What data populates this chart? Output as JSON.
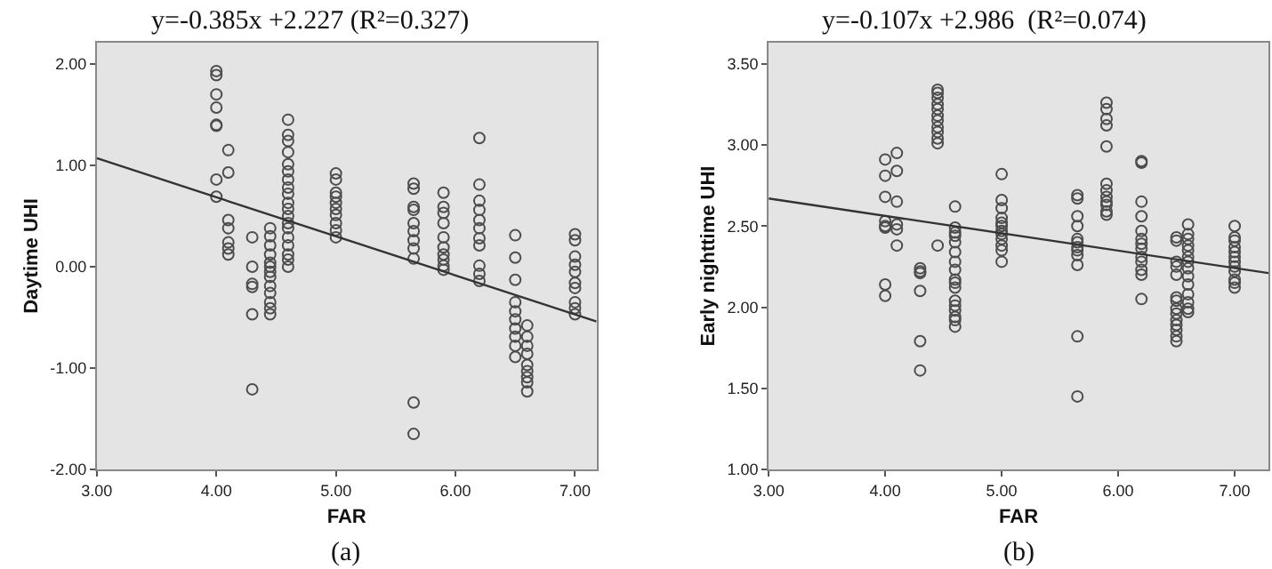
{
  "chart_data": [
    {
      "type": "scatter",
      "title": "y=-0.385x +2.227 (R²=0.327)",
      "xlabel": "FAR",
      "ylabel": "Daytime UHI",
      "annotations": [
        "(a)"
      ],
      "grid": false,
      "xlim": [
        3,
        7.18
      ],
      "ylim": [
        -2,
        2.21
      ],
      "xticks": [
        {
          "value": 3,
          "label": "3.00"
        },
        {
          "value": 4,
          "label": "4.00"
        },
        {
          "value": 5,
          "label": "5.00"
        },
        {
          "value": 6,
          "label": "6.00"
        },
        {
          "value": 7,
          "label": "7.00"
        }
      ],
      "yticks": [
        {
          "value": -2,
          "label": "-2.00"
        },
        {
          "value": -1,
          "label": "-1.00"
        },
        {
          "value": 0,
          "label": "0.00"
        },
        {
          "value": 1,
          "label": "1.00"
        },
        {
          "value": 2,
          "label": "2.00"
        }
      ],
      "series": [
        {
          "marker": "circle",
          "color": "#4d4d4d",
          "x": [
            4,
            4,
            4,
            4,
            4,
            4,
            4,
            4,
            4.1,
            4.1,
            4.1,
            4.1,
            4.1,
            4.1,
            4.1,
            4.3,
            4.3,
            4.3,
            4.3,
            4.3,
            4.3,
            4.45,
            4.45,
            4.45,
            4.45,
            4.45,
            4.45,
            4.45,
            4.45,
            4.45,
            4.45,
            4.45,
            4.45,
            4.45,
            4.6,
            4.6,
            4.6,
            4.6,
            4.6,
            4.6,
            4.6,
            4.6,
            4.6,
            4.6,
            4.6,
            4.6,
            4.6,
            4.6,
            4.6,
            4.6,
            4.6,
            4.6,
            4.6,
            5,
            5,
            5,
            5,
            5,
            5,
            5,
            5,
            5,
            5,
            5.65,
            5.65,
            5.65,
            5.65,
            5.65,
            5.65,
            5.65,
            5.65,
            5.65,
            5.65,
            5.65,
            5.9,
            5.9,
            5.9,
            5.9,
            5.9,
            5.9,
            5.9,
            5.9,
            5.9,
            5.9,
            6.2,
            6.2,
            6.2,
            6.2,
            6.2,
            6.2,
            6.2,
            6.2,
            6.2,
            6.2,
            6.2,
            6.5,
            6.5,
            6.5,
            6.5,
            6.5,
            6.5,
            6.5,
            6.5,
            6.5,
            6.5,
            6.6,
            6.6,
            6.6,
            6.6,
            6.6,
            6.6,
            6.6,
            6.6,
            6.6,
            7,
            7,
            7,
            7,
            7,
            7,
            7,
            7,
            7,
            7
          ],
          "values": [
            1.93,
            1.89,
            1.7,
            1.57,
            1.4,
            1.39,
            0.86,
            0.69,
            1.15,
            0.93,
            0.46,
            0.38,
            0.24,
            0.18,
            0.12,
            0.29,
            0.0,
            -0.17,
            -0.2,
            -0.47,
            -1.21,
            0.38,
            0.3,
            0.21,
            0.12,
            0.04,
            0.0,
            -0.05,
            -0.1,
            -0.19,
            -0.26,
            -0.35,
            -0.41,
            -0.47,
            1.45,
            1.3,
            1.24,
            1.13,
            1.01,
            0.94,
            0.86,
            0.78,
            0.72,
            0.63,
            0.57,
            0.5,
            0.43,
            0.38,
            0.29,
            0.21,
            0.12,
            0.07,
            0.0,
            0.92,
            0.86,
            0.73,
            0.69,
            0.63,
            0.57,
            0.51,
            0.43,
            0.36,
            0.29,
            0.82,
            0.77,
            0.59,
            0.56,
            0.43,
            0.35,
            0.26,
            0.18,
            0.08,
            -1.34,
            -1.65,
            0.73,
            0.59,
            0.53,
            0.43,
            0.29,
            0.19,
            0.12,
            0.07,
            0.01,
            -0.03,
            1.27,
            0.81,
            0.65,
            0.56,
            0.46,
            0.38,
            0.28,
            0.21,
            0.01,
            -0.07,
            -0.14,
            0.31,
            0.09,
            -0.13,
            -0.35,
            -0.44,
            -0.52,
            -0.61,
            -0.69,
            -0.78,
            -0.89,
            -0.58,
            -0.69,
            -0.78,
            -0.86,
            -0.97,
            -1.03,
            -1.09,
            -1.14,
            -1.23,
            0.32,
            0.26,
            0.1,
            0.02,
            -0.05,
            -0.16,
            -0.21,
            -0.35,
            -0.41,
            -0.47
          ]
        },
        {
          "type": "line",
          "color": "#333333",
          "x": [
            3,
            7.18
          ],
          "values": [
            1.07,
            -0.54
          ]
        }
      ]
    },
    {
      "type": "scatter",
      "title": "y=-0.107x +2.986  (R²=0.074)",
      "xlabel": "FAR",
      "ylabel": "Early nighttime UHI",
      "annotations": [
        "(b)"
      ],
      "grid": false,
      "xlim": [
        3,
        7.29
      ],
      "ylim": [
        1,
        3.63
      ],
      "xticks": [
        {
          "value": 3,
          "label": "3.00"
        },
        {
          "value": 4,
          "label": "4.00"
        },
        {
          "value": 5,
          "label": "5.00"
        },
        {
          "value": 6,
          "label": "6.00"
        },
        {
          "value": 7,
          "label": "7.00"
        }
      ],
      "yticks": [
        {
          "value": 1,
          "label": "1.00"
        },
        {
          "value": 1.5,
          "label": "1.50"
        },
        {
          "value": 2,
          "label": "2.00"
        },
        {
          "value": 2.5,
          "label": "2.50"
        },
        {
          "value": 3,
          "label": "3.00"
        },
        {
          "value": 3.5,
          "label": "3.50"
        }
      ],
      "series": [
        {
          "marker": "circle",
          "color": "#4d4d4d",
          "x": [
            4,
            4,
            4,
            4,
            4,
            4,
            4,
            4,
            4.1,
            4.1,
            4.1,
            4.1,
            4.1,
            4.1,
            4.3,
            4.3,
            4.3,
            4.3,
            4.3,
            4.3,
            4.45,
            4.45,
            4.45,
            4.45,
            4.45,
            4.45,
            4.45,
            4.45,
            4.45,
            4.45,
            4.45,
            4.45,
            4.6,
            4.6,
            4.6,
            4.6,
            4.6,
            4.6,
            4.6,
            4.6,
            4.6,
            4.6,
            4.6,
            4.6,
            4.6,
            4.6,
            4.6,
            4.6,
            4.6,
            5,
            5,
            5,
            5,
            5,
            5,
            5,
            5,
            5,
            5,
            5,
            5,
            5.65,
            5.65,
            5.65,
            5.65,
            5.65,
            5.65,
            5.65,
            5.65,
            5.65,
            5.65,
            5.65,
            5.65,
            5.9,
            5.9,
            5.9,
            5.9,
            5.9,
            5.9,
            5.9,
            5.9,
            5.9,
            5.9,
            5.9,
            5.9,
            6.2,
            6.2,
            6.2,
            6.2,
            6.2,
            6.2,
            6.2,
            6.2,
            6.2,
            6.2,
            6.2,
            6.2,
            6.2,
            6.5,
            6.5,
            6.5,
            6.5,
            6.5,
            6.5,
            6.5,
            6.5,
            6.5,
            6.5,
            6.5,
            6.5,
            6.5,
            6.5,
            6.6,
            6.6,
            6.6,
            6.6,
            6.6,
            6.6,
            6.6,
            6.6,
            6.6,
            6.6,
            6.6,
            6.6,
            6.6,
            6.6,
            7,
            7,
            7,
            7,
            7,
            7,
            7,
            7,
            7,
            7,
            7,
            7
          ],
          "values": [
            2.91,
            2.81,
            2.68,
            2.53,
            2.5,
            2.49,
            2.14,
            2.07,
            2.95,
            2.84,
            2.65,
            2.51,
            2.48,
            2.38,
            2.24,
            2.22,
            2.21,
            2.1,
            1.79,
            1.61,
            3.34,
            3.32,
            3.29,
            3.25,
            3.22,
            3.18,
            3.15,
            3.11,
            3.08,
            3.04,
            3.01,
            2.38,
            2.62,
            2.49,
            2.46,
            2.44,
            2.4,
            2.34,
            2.28,
            2.23,
            2.17,
            2.15,
            2.12,
            2.04,
            2.01,
            1.98,
            1.94,
            1.92,
            1.88,
            2.82,
            2.66,
            2.61,
            2.55,
            2.52,
            2.5,
            2.47,
            2.45,
            2.42,
            2.38,
            2.35,
            2.28,
            2.69,
            2.67,
            2.56,
            2.5,
            2.42,
            2.4,
            2.37,
            2.35,
            2.32,
            2.26,
            1.82,
            1.45,
            3.26,
            3.22,
            3.16,
            3.12,
            2.99,
            2.76,
            2.72,
            2.68,
            2.65,
            2.63,
            2.59,
            2.57,
            2.9,
            2.89,
            2.65,
            2.56,
            2.47,
            2.42,
            2.39,
            2.36,
            2.31,
            2.28,
            2.23,
            2.2,
            2.05,
            2.43,
            2.41,
            2.28,
            2.25,
            2.2,
            2.06,
            2.04,
            1.99,
            1.96,
            1.92,
            1.89,
            1.86,
            1.82,
            1.79,
            2.51,
            2.45,
            2.42,
            2.38,
            2.35,
            2.31,
            2.28,
            2.24,
            2.19,
            2.14,
            2.08,
            2.03,
            1.99,
            1.97,
            2.5,
            2.43,
            2.41,
            2.37,
            2.34,
            2.31,
            2.28,
            2.25,
            2.22,
            2.17,
            2.15,
            2.12
          ]
        },
        {
          "type": "line",
          "color": "#333333",
          "x": [
            3,
            7.29
          ],
          "values": [
            2.67,
            2.21
          ]
        }
      ]
    }
  ]
}
